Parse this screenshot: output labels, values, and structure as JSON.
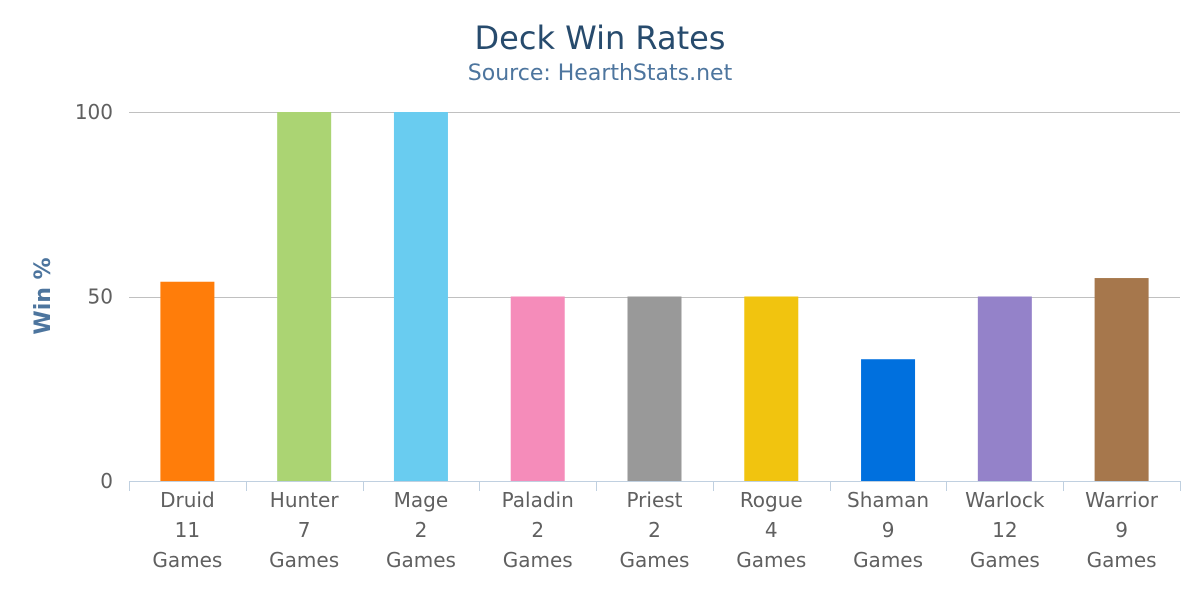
{
  "chart_data": {
    "type": "bar",
    "title": "Deck Win Rates",
    "subtitle": "Source: HearthStats.net",
    "ylabel": "Win %",
    "xlabel": "",
    "ylim": [
      0,
      100
    ],
    "yticks": [
      0,
      50,
      100
    ],
    "grid": true,
    "legend": "none",
    "categories": [
      {
        "name": "Druid",
        "count": "11",
        "unit": "Games"
      },
      {
        "name": "Hunter",
        "count": "7",
        "unit": "Games"
      },
      {
        "name": "Mage",
        "count": "2",
        "unit": "Games"
      },
      {
        "name": "Paladin",
        "count": "2",
        "unit": "Games"
      },
      {
        "name": "Priest",
        "count": "2",
        "unit": "Games"
      },
      {
        "name": "Rogue",
        "count": "4",
        "unit": "Games"
      },
      {
        "name": "Shaman",
        "count": "9",
        "unit": "Games"
      },
      {
        "name": "Warlock",
        "count": "12",
        "unit": "Games"
      },
      {
        "name": "Warrior",
        "count": "9",
        "unit": "Games"
      }
    ],
    "values": [
      54,
      100,
      100,
      50,
      50,
      50,
      33,
      50,
      55
    ],
    "colors": [
      "#FF7D0A",
      "#ABD473",
      "#69CCF0",
      "#F58CBA",
      "#999999",
      "#F1C40F",
      "#0070DE",
      "#9482C9",
      "#A6774C"
    ]
  },
  "style": {
    "title_color": "#274b6d",
    "subtitle_color": "#4d759e",
    "axis_title_color": "#4d759e",
    "label_color": "#606060",
    "grid_color": "#C0C0C0",
    "axis_line_color": "#C0D0E0"
  }
}
